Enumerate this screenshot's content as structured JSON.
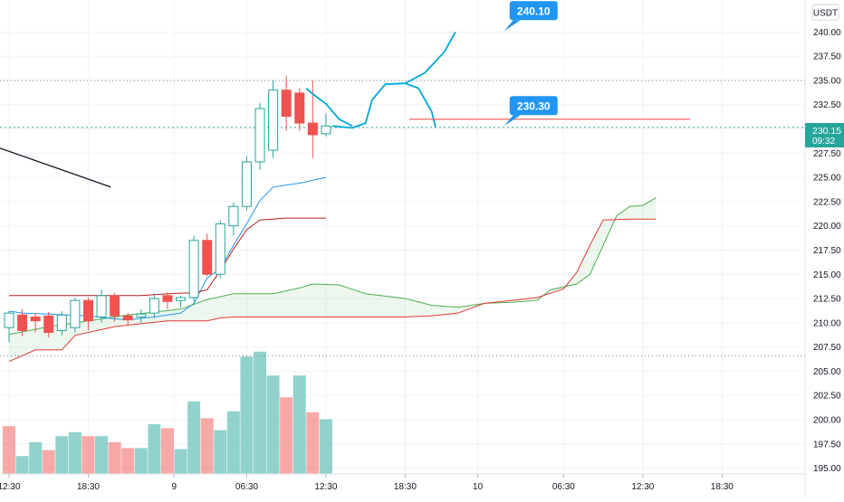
{
  "currency_label": "USDT",
  "last_price_label": "230.15",
  "countdown_label": "09:32",
  "colors": {
    "up": "#26a69a",
    "down": "#ef5350",
    "grid": "#f0f3fa",
    "axis_text": "#131722",
    "blue": "#2196f3",
    "drawing": "#00a8d6",
    "cloud_green": "#4caf50",
    "cloud_red": "#e53935",
    "cloud_fill": "rgba(76,175,80,0.10)"
  },
  "chart_data": {
    "type": "candlestick",
    "y_axis": {
      "side": "right",
      "range": [
        194.4,
        243.3
      ],
      "ticks": [
        195,
        197.5,
        200,
        202.5,
        205,
        207.5,
        210,
        212.5,
        215,
        217.5,
        220,
        222.5,
        225,
        227.5,
        230,
        232.5,
        235,
        237.5,
        240
      ],
      "tick_labels": [
        "195.00",
        "197.50",
        "200.00",
        "202.50",
        "205.00",
        "207.50",
        "210.00",
        "212.50",
        "215.00",
        "217.50",
        "220.00",
        "222.50",
        "225.00",
        "227.50",
        "230.00",
        "232.50",
        "235.00",
        "237.50",
        "240.00"
      ]
    },
    "x_axis": {
      "bar_hours": 1,
      "tick_labels": [
        {
          "label": "12:30",
          "bar": 0
        },
        {
          "label": "18:30",
          "bar": 6
        },
        {
          "label": "9",
          "bar": 12.5
        },
        {
          "label": "06:30",
          "bar": 18
        },
        {
          "label": "12:30",
          "bar": 24
        },
        {
          "label": "18:30",
          "bar": 30
        },
        {
          "label": "10",
          "bar": 35.5
        },
        {
          "label": "06:30",
          "bar": 42
        },
        {
          "label": "12:30",
          "bar": 48
        },
        {
          "label": "18:30",
          "bar": 54
        }
      ]
    },
    "candles": [
      {
        "o": 209.5,
        "h": 211.2,
        "l": 208.0,
        "c": 211.0
      },
      {
        "o": 210.8,
        "h": 211.4,
        "l": 208.6,
        "c": 209.2
      },
      {
        "o": 210.6,
        "h": 211.0,
        "l": 209.0,
        "c": 210.2
      },
      {
        "o": 210.7,
        "h": 211.1,
        "l": 208.5,
        "c": 209.0
      },
      {
        "o": 209.2,
        "h": 211.2,
        "l": 208.7,
        "c": 210.8
      },
      {
        "o": 209.5,
        "h": 212.6,
        "l": 209.0,
        "c": 212.3
      },
      {
        "o": 212.3,
        "h": 212.6,
        "l": 209.2,
        "c": 210.2
      },
      {
        "o": 210.6,
        "h": 213.4,
        "l": 210.0,
        "c": 212.8
      },
      {
        "o": 212.8,
        "h": 213.1,
        "l": 210.1,
        "c": 210.7
      },
      {
        "o": 210.7,
        "h": 211.0,
        "l": 209.8,
        "c": 210.3
      },
      {
        "o": 210.6,
        "h": 211.4,
        "l": 210.0,
        "c": 210.9
      },
      {
        "o": 211.0,
        "h": 213.0,
        "l": 210.5,
        "c": 212.5
      },
      {
        "o": 212.8,
        "h": 213.1,
        "l": 211.4,
        "c": 212.2
      },
      {
        "o": 212.3,
        "h": 212.8,
        "l": 211.6,
        "c": 212.6
      },
      {
        "o": 212.6,
        "h": 219.0,
        "l": 212.1,
        "c": 218.5
      },
      {
        "o": 218.5,
        "h": 219.2,
        "l": 214.8,
        "c": 215.0
      },
      {
        "o": 215.0,
        "h": 220.6,
        "l": 214.6,
        "c": 220.2
      },
      {
        "o": 220.0,
        "h": 222.4,
        "l": 219.0,
        "c": 222.0
      },
      {
        "o": 222.0,
        "h": 227.2,
        "l": 221.6,
        "c": 226.6
      },
      {
        "o": 226.6,
        "h": 232.7,
        "l": 225.8,
        "c": 232.1
      },
      {
        "o": 227.8,
        "h": 235.0,
        "l": 227.0,
        "c": 234.0
      },
      {
        "o": 234.0,
        "h": 235.5,
        "l": 229.8,
        "c": 231.3
      },
      {
        "o": 233.7,
        "h": 234.2,
        "l": 229.8,
        "c": 230.6
      },
      {
        "o": 230.6,
        "h": 235.0,
        "l": 227.0,
        "c": 229.4
      },
      {
        "o": 229.5,
        "h": 231.6,
        "l": 229.2,
        "c": 230.3
      }
    ],
    "volume": [
      {
        "v": 0.48,
        "up": false
      },
      {
        "v": 0.18,
        "up": true
      },
      {
        "v": 0.32,
        "up": true
      },
      {
        "v": 0.24,
        "up": false
      },
      {
        "v": 0.38,
        "up": true
      },
      {
        "v": 0.42,
        "up": true
      },
      {
        "v": 0.38,
        "up": false
      },
      {
        "v": 0.38,
        "up": true
      },
      {
        "v": 0.32,
        "up": false
      },
      {
        "v": 0.26,
        "up": false
      },
      {
        "v": 0.26,
        "up": true
      },
      {
        "v": 0.5,
        "up": true
      },
      {
        "v": 0.46,
        "up": false
      },
      {
        "v": 0.25,
        "up": true
      },
      {
        "v": 0.73,
        "up": true
      },
      {
        "v": 0.56,
        "up": false
      },
      {
        "v": 0.44,
        "up": true
      },
      {
        "v": 0.63,
        "up": true
      },
      {
        "v": 1.18,
        "up": true
      },
      {
        "v": 1.23,
        "up": true
      },
      {
        "v": 0.99,
        "up": true
      },
      {
        "v": 0.77,
        "up": false
      },
      {
        "v": 0.99,
        "up": true
      },
      {
        "v": 0.62,
        "up": false
      },
      {
        "v": 0.55,
        "up": true
      }
    ],
    "indicators": {
      "blue_line": [
        [
          0,
          211.2
        ],
        [
          1,
          211.0
        ],
        [
          3,
          210.9
        ],
        [
          6,
          210.7
        ],
        [
          8,
          210.4
        ],
        [
          9,
          210.3
        ],
        [
          11,
          210.6
        ],
        [
          13,
          211.0
        ],
        [
          14,
          212.0
        ],
        [
          15,
          214.6
        ],
        [
          16,
          215.6
        ],
        [
          17,
          218.0
        ],
        [
          18,
          220.2
        ],
        [
          19,
          222.6
        ],
        [
          20,
          224.0
        ],
        [
          22,
          224.4
        ],
        [
          24,
          225.0
        ]
      ],
      "red_line": [
        [
          0,
          212.8
        ],
        [
          3,
          212.8
        ],
        [
          6,
          212.8
        ],
        [
          8,
          212.8
        ],
        [
          10,
          212.8
        ],
        [
          12,
          213.0
        ],
        [
          14,
          213.1
        ],
        [
          15,
          213.4
        ],
        [
          16,
          215.4
        ],
        [
          17,
          217.6
        ],
        [
          18,
          219.6
        ],
        [
          19,
          220.6
        ],
        [
          21,
          220.8
        ],
        [
          24,
          220.8
        ]
      ],
      "cloud_green": [
        [
          0,
          208.8
        ],
        [
          3,
          209.6
        ],
        [
          6,
          210.2
        ],
        [
          9,
          210.8
        ],
        [
          13,
          211.4
        ],
        [
          15,
          212.4
        ],
        [
          17,
          213.0
        ],
        [
          20,
          213.0
        ],
        [
          22,
          213.6
        ],
        [
          23,
          214.0
        ],
        [
          25,
          213.9
        ],
        [
          27,
          213.0
        ],
        [
          30,
          212.5
        ],
        [
          32,
          211.8
        ],
        [
          34,
          211.6
        ],
        [
          36,
          212.0
        ],
        [
          38,
          212.1
        ],
        [
          40,
          212.3
        ],
        [
          41,
          213.4
        ],
        [
          43,
          214.0
        ],
        [
          44,
          215.0
        ],
        [
          45,
          218.0
        ],
        [
          46,
          221.0
        ],
        [
          47,
          222.0
        ],
        [
          48,
          222.1
        ],
        [
          49,
          222.9
        ]
      ],
      "cloud_red": [
        [
          0,
          206.0
        ],
        [
          2,
          207.2
        ],
        [
          4,
          207.2
        ],
        [
          5,
          208.7
        ],
        [
          8,
          209.6
        ],
        [
          12,
          210.2
        ],
        [
          15,
          210.2
        ],
        [
          16,
          210.5
        ],
        [
          17,
          210.6
        ],
        [
          20,
          210.6
        ],
        [
          24,
          210.6
        ],
        [
          27,
          210.6
        ],
        [
          30,
          210.6
        ],
        [
          32,
          210.7
        ],
        [
          34,
          211.0
        ],
        [
          36,
          212.0
        ],
        [
          38,
          212.3
        ],
        [
          40,
          212.6
        ],
        [
          42,
          213.5
        ],
        [
          43,
          215.2
        ],
        [
          44,
          218.0
        ],
        [
          45,
          220.6
        ],
        [
          47,
          220.7
        ],
        [
          49,
          220.7
        ]
      ],
      "trend_line": [
        [
          -8,
          231.5
        ],
        [
          7.7,
          224.0
        ]
      ],
      "projection_path": [
        [
          24.5,
          230.3
        ],
        [
          26.0,
          230.1
        ],
        [
          27.0,
          230.6
        ],
        [
          27.5,
          233.0
        ],
        [
          28.5,
          234.6
        ],
        [
          30.0,
          234.7
        ],
        [
          31.0,
          234.2
        ],
        [
          32.0,
          231.8
        ],
        [
          32.3,
          230.2
        ]
      ],
      "projection_up": [
        [
          30.0,
          234.7
        ],
        [
          31.5,
          235.8
        ],
        [
          33.0,
          238.0
        ],
        [
          33.8,
          240.0
        ]
      ],
      "projection_hook": [
        [
          22.5,
          234.2
        ],
        [
          23.0,
          233.6
        ],
        [
          24.0,
          232.6
        ],
        [
          25.0,
          231.0
        ],
        [
          26.0,
          230.3
        ]
      ],
      "red_horizontal": {
        "x1": 30.3,
        "x2": 51.6,
        "y": 231.0
      }
    },
    "dotted_levels": [
      235.0,
      230.15,
      206.6
    ],
    "labels": [
      {
        "text": "240.10",
        "value": 240.1,
        "bar": 37.5
      },
      {
        "text": "230.30",
        "value": 230.3,
        "bar": 37.5
      }
    ]
  }
}
